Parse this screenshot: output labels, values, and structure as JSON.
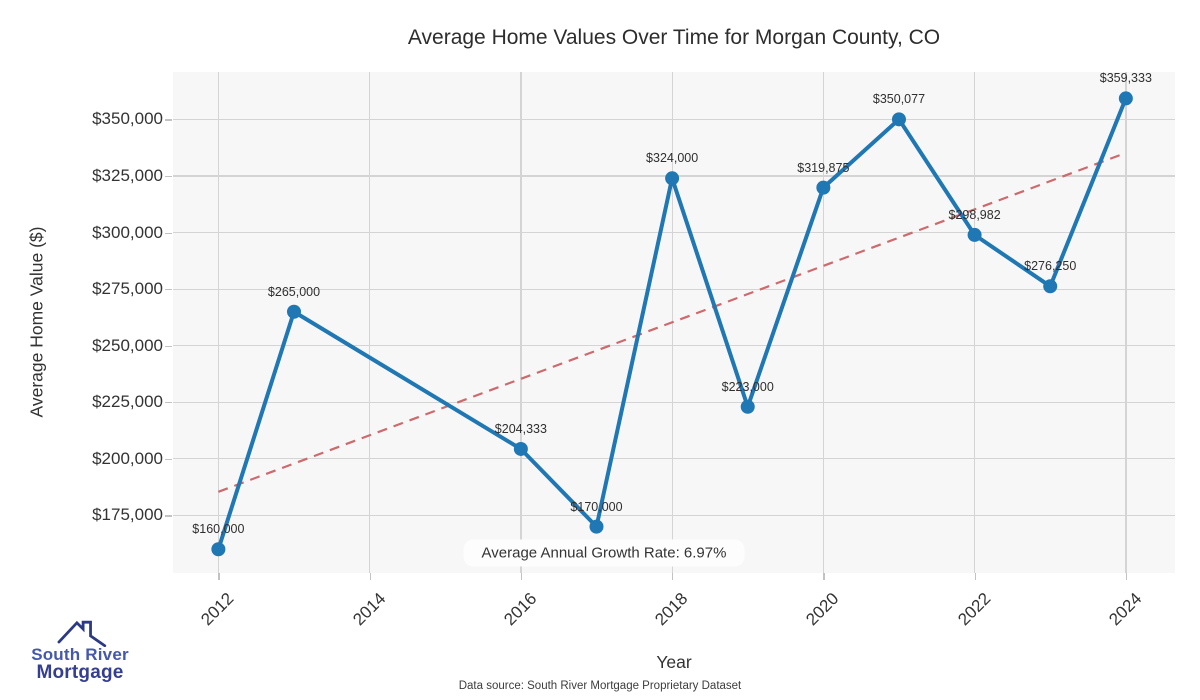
{
  "title": "Average Home Values Over Time for Morgan County, CO",
  "annotation": {
    "text": "Average Annual Growth Rate: 6.97%"
  },
  "caption": {
    "text": "Data source: South River Mortgage Proprietary Dataset"
  },
  "logo": {
    "line1": "South River",
    "line2": "Mortgage",
    "line1_color": "#4558aa",
    "line2_color": "#353f90",
    "roof_color": "#2c3a84",
    "roof_icon": "house-roof-with-chimney"
  },
  "chart_data": {
    "type": "line",
    "title": "Average Home Values Over Time for Morgan County, CO",
    "xlabel": "Year",
    "ylabel": "Average Home Value ($)",
    "x": [
      2012,
      2013,
      2016,
      2017,
      2018,
      2019,
      2020,
      2021,
      2022,
      2023,
      2024
    ],
    "values": [
      160000,
      265000,
      204333,
      170000,
      324000,
      223000,
      319875,
      350077,
      298982,
      276250,
      359333
    ],
    "point_labels": [
      "$160,000",
      "$265,000",
      "$204,333",
      "$170,000",
      "$324,000",
      "$223,000",
      "$319,875",
      "$350,077",
      "$298,982",
      "$276,250",
      "$359,333"
    ],
    "trend": {
      "style": "dashed",
      "x": [
        2012,
        2024
      ],
      "values": [
        185402,
        335234
      ]
    },
    "xticks": [
      2012,
      2014,
      2016,
      2018,
      2020,
      2022,
      2024
    ],
    "yticks": [
      175000,
      200000,
      225000,
      250000,
      275000,
      300000,
      325000,
      350000
    ],
    "ytick_labels": [
      "$175,000",
      "$200,000",
      "$225,000",
      "$250,000",
      "$275,000",
      "$300,000",
      "$325,000",
      "$350,000"
    ],
    "xlim": [
      2011.4,
      2024.65
    ],
    "ylim": [
      149500,
      371000
    ],
    "grid": true,
    "legend": false,
    "colors": {
      "series": "#1f77b4",
      "trend": "#cd6a6d",
      "plot_bg": "#f7f7f7",
      "grid": "#d4d4d4",
      "text": "#333333"
    }
  }
}
